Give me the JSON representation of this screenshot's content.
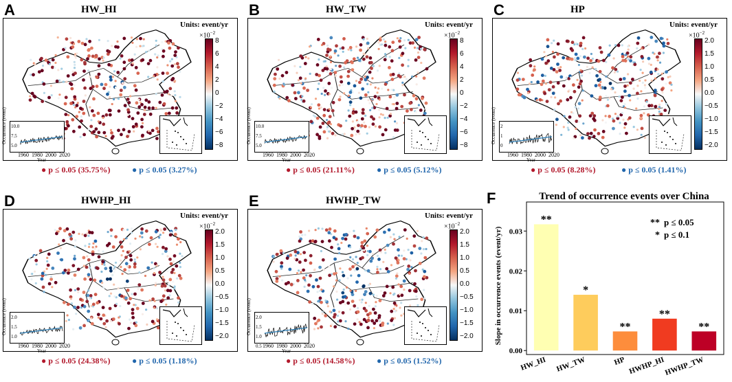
{
  "panels": [
    {
      "letter": "A",
      "title": "HW_HI",
      "units": "Units: event/yr",
      "scale": "×10",
      "scale_exp": "−2",
      "ticks": [
        "8",
        "6",
        "4",
        "2",
        "0",
        "−2",
        "−4",
        "−6",
        "−8"
      ],
      "sig_pos": "p ≤ 0.05 (35.75%)",
      "sig_neg": "p ≤ 0.05 (3.27%)",
      "inset_ylabel": "Occurrence (event)",
      "inset_xlabel": "Year",
      "inset_x": [
        "1960",
        "1980",
        "2000",
        "2020"
      ],
      "inset_y": [
        "10.0",
        "7.5",
        "5.0"
      ]
    },
    {
      "letter": "B",
      "title": "HW_TW",
      "units": "Units: event/yr",
      "scale": "×10",
      "scale_exp": "−2",
      "ticks": [
        "8",
        "6",
        "4",
        "2",
        "0",
        "−2",
        "−4",
        "−6",
        "−8"
      ],
      "sig_pos": "p ≤ 0.05 (21.11%)",
      "sig_neg": "p ≤ 0.05 (5.12%)",
      "inset_ylabel": "Occurrence (event)",
      "inset_xlabel": "Year",
      "inset_x": [
        "1960",
        "1980",
        "2000",
        "2020"
      ],
      "inset_y": [
        "10.0",
        "7.5",
        "5.0"
      ]
    },
    {
      "letter": "C",
      "title": "HP",
      "units": "Units: event/yr",
      "scale": "×10",
      "scale_exp": "−2",
      "ticks": [
        "2.0",
        "1.5",
        "1.0",
        "0.5",
        "0.0",
        "−0.5",
        "−1.0",
        "−1.5",
        "−2.0"
      ],
      "sig_pos": "p ≤ 0.05 (8.28%)",
      "sig_neg": "p ≤ 0.05 (1.41%)",
      "inset_ylabel": "Occurrence (event)",
      "inset_xlabel": "Year",
      "inset_x": [
        "1960",
        "1980",
        "2000",
        "2020"
      ],
      "inset_y": [
        "2",
        "1",
        "0"
      ]
    },
    {
      "letter": "D",
      "title": "HWHP_HI",
      "units": "Units: event/yr",
      "scale": "×10",
      "scale_exp": "−2",
      "ticks": [
        "2.0",
        "1.5",
        "1.0",
        "0.5",
        "0.0",
        "−0.5",
        "−1.0",
        "−1.5",
        "−2.0"
      ],
      "sig_pos": "p ≤ 0.05 (24.38%)",
      "sig_neg": "p ≤ 0.05 (1.18%)",
      "inset_ylabel": "Occurrence (event)",
      "inset_xlabel": "Year",
      "inset_x": [
        "1960",
        "1980",
        "2000",
        "2020"
      ],
      "inset_y": [
        "2.0",
        "1.5",
        "1.0"
      ]
    },
    {
      "letter": "E",
      "title": "HWHP_TW",
      "units": "Units: event/yr",
      "scale": "×10",
      "scale_exp": "−2",
      "ticks": [
        "2.0",
        "1.5",
        "1.0",
        "0.5",
        "0.0",
        "−0.5",
        "−1.0",
        "−1.5",
        "−2.0"
      ],
      "sig_pos": "p ≤ 0.05 (14.58%)",
      "sig_neg": "p ≤ 0.05 (1.52%)",
      "inset_ylabel": "Occurrence (event)",
      "inset_xlabel": "Year",
      "inset_x": [
        "1960",
        "1980",
        "2000",
        "2020"
      ],
      "inset_y": [
        "2.0",
        "1.5",
        "1.0",
        "0.5"
      ]
    }
  ],
  "chart_data": {
    "letter": "F",
    "type": "bar",
    "title": "Trend of occurrence events over China",
    "ylabel": "Slope in occurrence events (event/yr)",
    "xlabel": "",
    "categories": [
      "HW_HI",
      "HW_TW",
      "HP",
      "HWHP_HI",
      "HWHP_TW"
    ],
    "values": [
      0.0317,
      0.014,
      0.0048,
      0.008,
      0.0048
    ],
    "colors": [
      "#ffffb2",
      "#fecc5c",
      "#fd8d3c",
      "#f03b20",
      "#bd0026"
    ],
    "significance": [
      "**",
      "*",
      "**",
      "**",
      "**"
    ],
    "ylim": [
      -0.001,
      0.0335
    ],
    "yticks": [
      "0.00",
      "0.01",
      "0.02",
      "0.03"
    ],
    "legend": [
      {
        "mark": "**",
        "label": "p ≤ 0.05"
      },
      {
        "mark": "*",
        "label": "p ≤ 0.1"
      }
    ]
  }
}
